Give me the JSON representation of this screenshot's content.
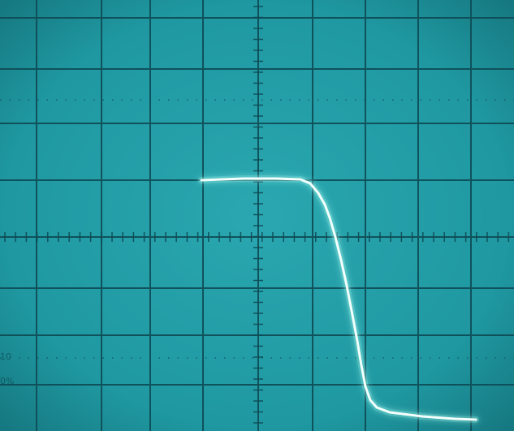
{
  "screen": {
    "background_color": "#1f9aa3",
    "graticule_color": "#0e4b55",
    "trace_color": "#f2fffc",
    "glow_color": "#a9fff3"
  },
  "scale_markings": {
    "top": "10",
    "bottom": "0%"
  },
  "trace": {
    "description_shape": "flat-high level then steep fall to low level",
    "points": [
      [
        248,
        222
      ],
      [
        300,
        220
      ],
      [
        340,
        220
      ],
      [
        370,
        221
      ],
      [
        382,
        226
      ],
      [
        392,
        238
      ],
      [
        400,
        252
      ],
      [
        406,
        268
      ],
      [
        413,
        292
      ],
      [
        420,
        320
      ],
      [
        427,
        352
      ],
      [
        434,
        388
      ],
      [
        440,
        420
      ],
      [
        445,
        450
      ],
      [
        450,
        476
      ],
      [
        456,
        493
      ],
      [
        464,
        502
      ],
      [
        480,
        508
      ],
      [
        520,
        513
      ],
      [
        560,
        516
      ],
      [
        586,
        517
      ]
    ]
  }
}
